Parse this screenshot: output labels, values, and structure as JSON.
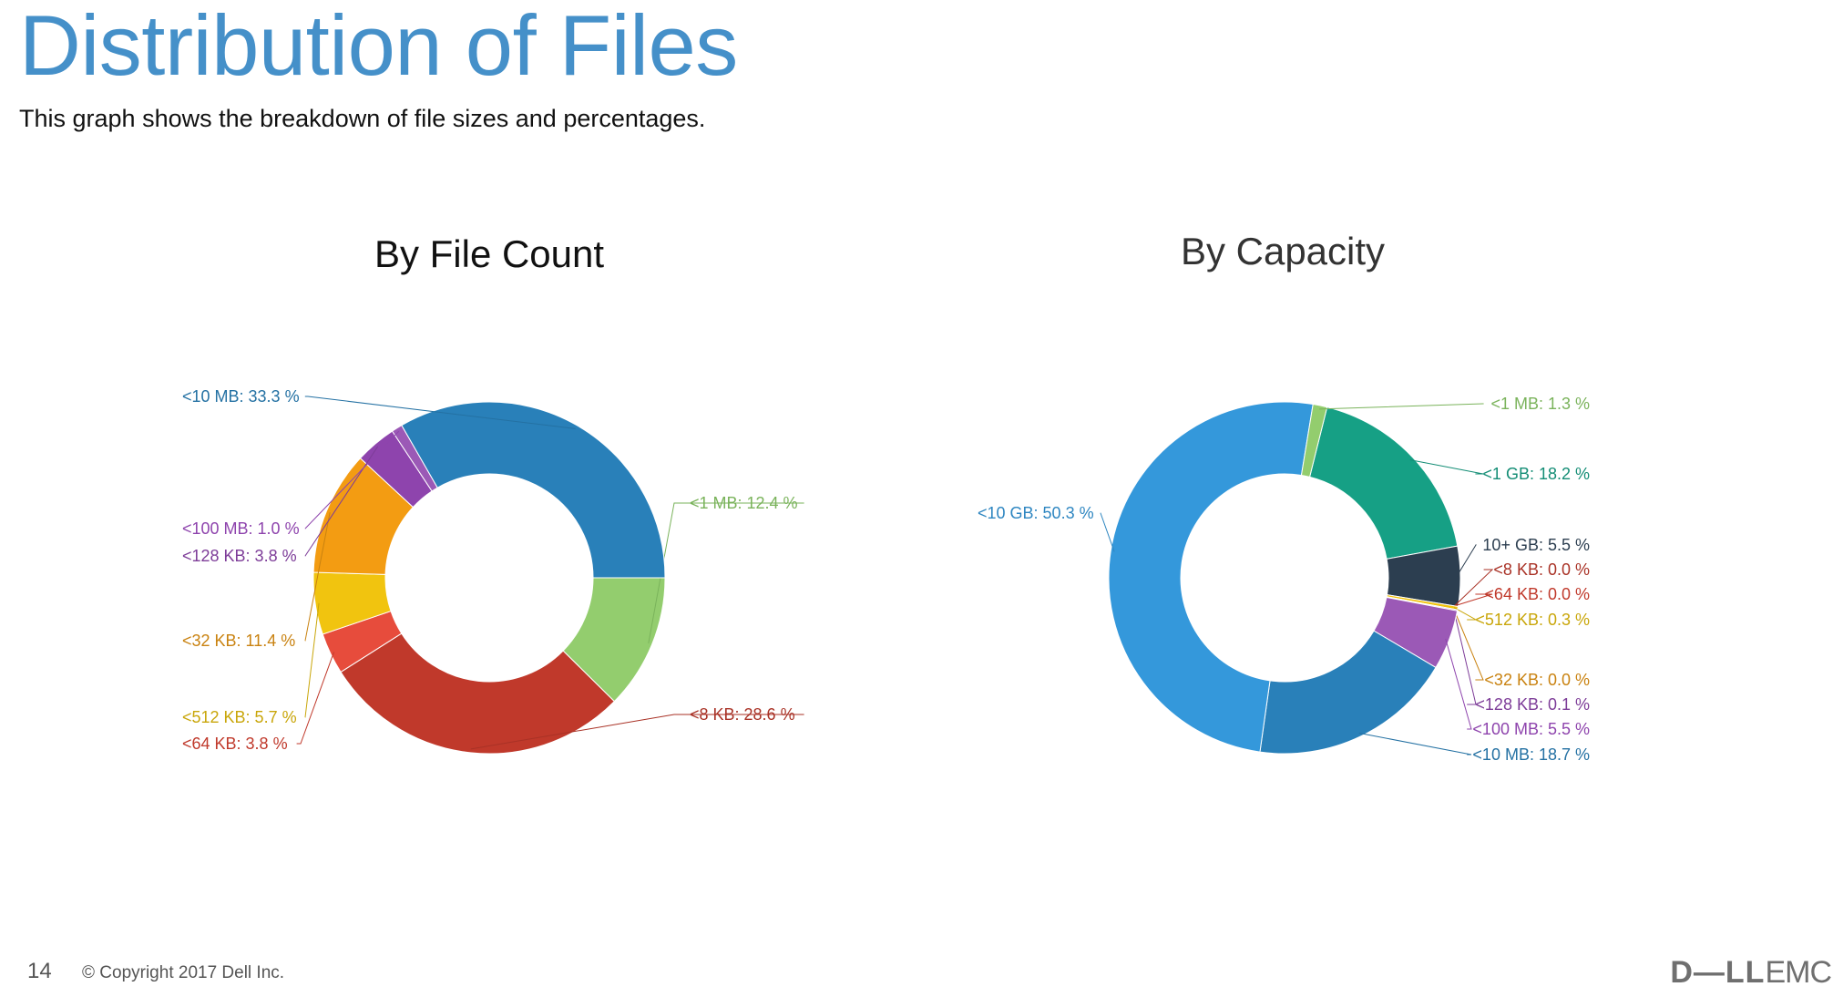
{
  "page": {
    "title": "Distribution of Files",
    "subtitle": "This graph shows the breakdown of file sizes and percentages.",
    "page_number": "14",
    "copyright": "© Copyright 2017 Dell Inc.",
    "logo_dell": "D―LL",
    "logo_emc": "EMC"
  },
  "chart_data": [
    {
      "type": "pie",
      "title": "By File Count",
      "series": [
        {
          "label": "<1 MB",
          "value": 12.4,
          "text": "<1 MB: 12.4 %",
          "color": "#93cd6e",
          "label_color": "#7ab35b"
        },
        {
          "label": "<8 KB",
          "value": 28.6,
          "text": "<8 KB: 28.6 %",
          "color": "#c0392b",
          "label_color": "#a93226"
        },
        {
          "label": "<64 KB",
          "value": 3.8,
          "text": "<64 KB: 3.8 %",
          "color": "#e74c3c",
          "label_color": "#c0392b"
        },
        {
          "label": "<512 KB",
          "value": 5.7,
          "text": "<512 KB: 5.7 %",
          "color": "#f1c40f",
          "label_color": "#c9a60a"
        },
        {
          "label": "<32 KB",
          "value": 11.4,
          "text": "<32 KB: 11.4 %",
          "color": "#f39c12",
          "label_color": "#c98210"
        },
        {
          "label": "<128 KB",
          "value": 3.8,
          "text": "<128 KB: 3.8 %",
          "color": "#8e44ad",
          "label_color": "#7d3c98"
        },
        {
          "label": "<100 MB",
          "value": 1.0,
          "text": "<100 MB: 1.0 %",
          "color": "#9b59b6",
          "label_color": "#8e44ad"
        },
        {
          "label": "<10 MB",
          "value": 33.3,
          "text": "<10 MB: 33.3 %",
          "color": "#2980b9",
          "label_color": "#2471a3"
        }
      ]
    },
    {
      "type": "pie",
      "title": "By Capacity",
      "series": [
        {
          "label": "<1 GB",
          "value": 18.2,
          "text": "<1 GB: 18.2 %",
          "color": "#16a085",
          "label_color": "#138d75"
        },
        {
          "label": "10+ GB",
          "value": 5.5,
          "text": "10+ GB: 5.5 %",
          "color": "#2c3e50",
          "label_color": "#2c3e50"
        },
        {
          "label": "<8 KB",
          "value": 0.0,
          "text": "<8 KB: 0.0 %",
          "color": "#c0392b",
          "label_color": "#a93226"
        },
        {
          "label": "<64 KB",
          "value": 0.0,
          "text": "<64 KB: 0.0 %",
          "color": "#e74c3c",
          "label_color": "#c0392b"
        },
        {
          "label": "<512 KB",
          "value": 0.3,
          "text": "<512 KB: 0.3 %",
          "color": "#f1c40f",
          "label_color": "#c9a60a"
        },
        {
          "label": "<32 KB",
          "value": 0.0,
          "text": "<32 KB: 0.0 %",
          "color": "#f39c12",
          "label_color": "#c98210"
        },
        {
          "label": "<128 KB",
          "value": 0.1,
          "text": "<128 KB: 0.1 %",
          "color": "#8e44ad",
          "label_color": "#7d3c98"
        },
        {
          "label": "<100 MB",
          "value": 5.5,
          "text": "<100 MB: 5.5 %",
          "color": "#9b59b6",
          "label_color": "#8e44ad"
        },
        {
          "label": "<10 MB",
          "value": 18.7,
          "text": "<10 MB: 18.7 %",
          "color": "#2980b9",
          "label_color": "#2471a3"
        },
        {
          "label": "<10 GB",
          "value": 50.3,
          "text": "<10 GB: 50.3 %",
          "color": "#3498db",
          "label_color": "#2e86c1"
        },
        {
          "label": "<1 MB",
          "value": 1.3,
          "text": "<1 MB: 1.3 %",
          "color": "#93cd6e",
          "label_color": "#7ab35b"
        }
      ]
    }
  ]
}
